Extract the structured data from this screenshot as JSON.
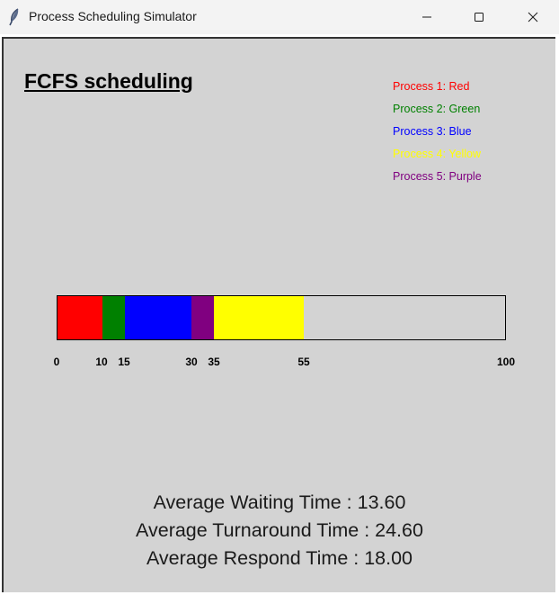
{
  "window": {
    "title": "Process Scheduling Simulator",
    "icon": "feather-icon"
  },
  "heading": "FCFS scheduling",
  "legend": [
    {
      "label": "Process 1: Red",
      "color": "#ff0000"
    },
    {
      "label": "Process 2: Green",
      "color": "#008000"
    },
    {
      "label": "Process 3: Blue",
      "color": "#0000ff"
    },
    {
      "label": "Process 4: Yellow",
      "color": "#ffff00"
    },
    {
      "label": "Process 5: Purple",
      "color": "#800080"
    }
  ],
  "gantt": {
    "max": 100,
    "segments": [
      {
        "start": 0,
        "end": 10,
        "color": "#ff0000"
      },
      {
        "start": 10,
        "end": 15,
        "color": "#008000"
      },
      {
        "start": 15,
        "end": 30,
        "color": "#0000ff"
      },
      {
        "start": 30,
        "end": 35,
        "color": "#800080"
      },
      {
        "start": 35,
        "end": 55,
        "color": "#ffff00"
      }
    ],
    "ticks": [
      "0",
      "10",
      "15",
      "30",
      "35",
      "55",
      "100"
    ]
  },
  "stats": {
    "waiting": "Average Waiting Time : 13.60",
    "turnaround": "Average Turnaround Time : 24.60",
    "respond": "Average Respond Time : 18.00"
  }
}
